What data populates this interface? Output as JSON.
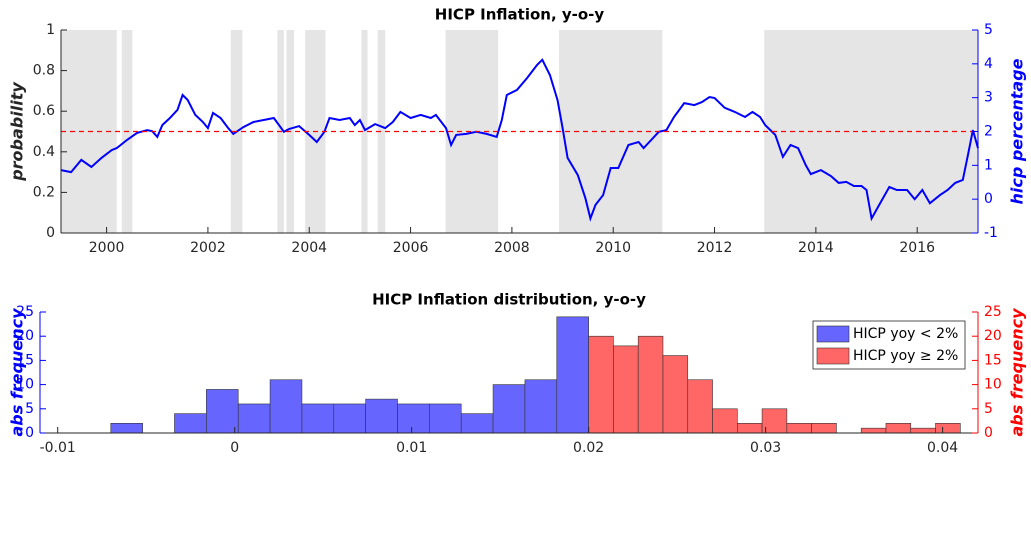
{
  "chart_data": [
    {
      "type": "line",
      "title": "HICP Inflation, y-o-y",
      "ylabel": "probability",
      "y2label": "hicp percentage",
      "ycolor": "#262626",
      "y2color": "#0000ff",
      "xlim": [
        1999.1,
        2017.2
      ],
      "xticks": [
        2000,
        2002,
        2004,
        2006,
        2008,
        2010,
        2012,
        2014,
        2016
      ],
      "ylim": [
        0,
        1
      ],
      "yticks": [
        0,
        0.2,
        0.4,
        0.6,
        0.8,
        1
      ],
      "y2lim": [
        -1,
        5
      ],
      "y2ticks": [
        -1,
        0,
        1,
        2,
        3,
        4,
        5
      ],
      "shade_color": "#e5e5e5",
      "shaded_periods": [
        [
          1999.1,
          2000.2
        ],
        [
          2000.3,
          2000.51
        ],
        [
          2002.45,
          2002.68
        ],
        [
          2003.37,
          2003.5
        ],
        [
          2003.55,
          2003.7
        ],
        [
          2003.92,
          2004.32
        ],
        [
          2005.03,
          2005.15
        ],
        [
          2005.35,
          2005.5
        ],
        [
          2006.69,
          2007.73
        ],
        [
          2008.93,
          2010.97
        ],
        [
          2012.98,
          2017.2
        ]
      ],
      "threshold": {
        "value": 0.5,
        "color": "#ff0000"
      },
      "x": [
        1999.1,
        1999.3,
        1999.5,
        1999.7,
        1999.9,
        2000.1,
        2000.2,
        2000.4,
        2000.6,
        2000.8,
        2000.9,
        2001.0,
        2001.1,
        2001.25,
        2001.4,
        2001.5,
        2001.6,
        2001.75,
        2001.9,
        2002.0,
        2002.1,
        2002.25,
        2002.4,
        2002.5,
        2002.7,
        2002.9,
        2003.1,
        2003.3,
        2003.5,
        2003.6,
        2003.8,
        2004.0,
        2004.15,
        2004.3,
        2004.4,
        2004.6,
        2004.8,
        2004.9,
        2005.0,
        2005.1,
        2005.3,
        2005.5,
        2005.65,
        2005.8,
        2006.0,
        2006.2,
        2006.4,
        2006.5,
        2006.7,
        2006.8,
        2006.9,
        2007.1,
        2007.3,
        2007.5,
        2007.7,
        2007.8,
        2007.9,
        2008.1,
        2008.3,
        2008.5,
        2008.6,
        2008.75,
        2008.9,
        2009.0,
        2009.1,
        2009.3,
        2009.45,
        2009.55,
        2009.65,
        2009.8,
        2009.95,
        2010.1,
        2010.3,
        2010.5,
        2010.6,
        2010.75,
        2010.9,
        2011.05,
        2011.2,
        2011.4,
        2011.6,
        2011.75,
        2011.9,
        2012.0,
        2012.2,
        2012.4,
        2012.6,
        2012.75,
        2012.9,
        2013.0,
        2013.2,
        2013.35,
        2013.5,
        2013.65,
        2013.8,
        2013.9,
        2014.1,
        2014.3,
        2014.45,
        2014.6,
        2014.75,
        2014.9,
        2015.0,
        2015.1,
        2015.25,
        2015.45,
        2015.6,
        2015.8,
        2015.95,
        2016.1,
        2016.25,
        2016.45,
        2016.6,
        2016.75,
        2016.9,
        2017.0,
        2017.1,
        2017.2
      ],
      "series": [
        {
          "color": "#0000ff",
          "axis": "y2",
          "values": [
            0.86,
            0.8,
            1.16,
            0.95,
            1.22,
            1.45,
            1.51,
            1.75,
            1.96,
            2.04,
            2.01,
            1.84,
            2.19,
            2.4,
            2.64,
            3.08,
            2.93,
            2.49,
            2.28,
            2.1,
            2.55,
            2.4,
            2.1,
            1.93,
            2.13,
            2.28,
            2.34,
            2.4,
            1.99,
            2.07,
            2.16,
            1.9,
            1.69,
            1.99,
            2.4,
            2.34,
            2.4,
            2.19,
            2.34,
            2.04,
            2.22,
            2.1,
            2.28,
            2.58,
            2.4,
            2.49,
            2.4,
            2.49,
            2.1,
            1.6,
            1.9,
            1.93,
            1.99,
            1.93,
            1.84,
            2.34,
            3.08,
            3.23,
            3.58,
            3.97,
            4.12,
            3.67,
            2.93,
            2.1,
            1.22,
            0.71,
            0.03,
            -0.57,
            -0.17,
            0.12,
            0.92,
            0.92,
            1.6,
            1.69,
            1.51,
            1.75,
            1.99,
            2.04,
            2.43,
            2.84,
            2.78,
            2.87,
            3.02,
            2.99,
            2.7,
            2.58,
            2.43,
            2.58,
            2.43,
            2.19,
            1.9,
            1.25,
            1.6,
            1.51,
            1.01,
            0.74,
            0.86,
            0.68,
            0.48,
            0.51,
            0.39,
            0.39,
            0.27,
            -0.57,
            -0.17,
            0.36,
            0.27,
            0.27,
            0.0,
            0.27,
            -0.12,
            0.12,
            0.27,
            0.48,
            0.57,
            1.3,
            2.04,
            1.51
          ]
        }
      ]
    },
    {
      "type": "histogram",
      "title": "HICP Inflation distribution, y-o-y",
      "ylabel": "abs frequency",
      "y2label": "abs frequency",
      "ycolor": "#0000ff",
      "y2color": "#ff0000",
      "xlim": [
        -0.011,
        0.042
      ],
      "xticks": [
        -0.01,
        0,
        0.01,
        0.02,
        0.03,
        0.04
      ],
      "ylim": [
        0,
        25
      ],
      "yticks": [
        0,
        5,
        10,
        15,
        20,
        25
      ],
      "y2lim": [
        0,
        25
      ],
      "y2ticks": [
        0,
        5,
        10,
        15,
        20,
        25
      ],
      "legend": "upper right",
      "series": [
        {
          "name": "HICP yoy < 2%",
          "color": "#6666ff",
          "bins": [
            -0.007,
            -0.0052,
            -0.0034,
            -0.0016,
            0.0002,
            0.002,
            0.0038,
            0.0056,
            0.0074,
            0.0092,
            0.011,
            0.0128,
            0.0146,
            0.0164,
            0.0182,
            0.02
          ],
          "values": [
            2,
            0,
            4,
            9,
            6,
            11,
            6,
            6,
            7,
            6,
            6,
            4,
            10,
            11,
            24
          ]
        },
        {
          "name": "HICP yoy ≥ 2%",
          "color": "#ff6666",
          "axis": "y2",
          "bins": [
            0.02,
            0.0214,
            0.0228,
            0.0242,
            0.0256,
            0.027,
            0.0284,
            0.0298,
            0.0312,
            0.0326,
            0.034,
            0.0354,
            0.0368,
            0.0382,
            0.0396,
            0.041
          ],
          "values": [
            20,
            18,
            20,
            16,
            11,
            5,
            2,
            5,
            2,
            2,
            0,
            1,
            2,
            1,
            2
          ]
        }
      ]
    }
  ]
}
